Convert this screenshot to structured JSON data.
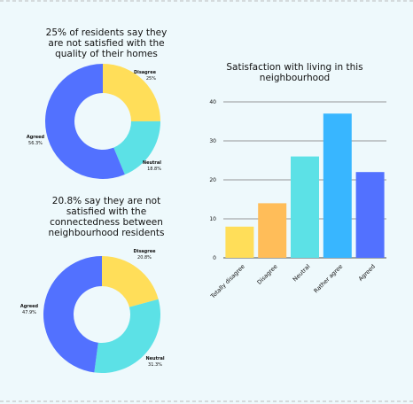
{
  "chart_data": [
    {
      "type": "donut",
      "title": "25% of residents say they are not satisfied with the quality of their homes",
      "categories": [
        "Disagree",
        "Neutral",
        "Agreed"
      ],
      "values": [
        25,
        18.8,
        56.3
      ],
      "value_labels": [
        "25%",
        "18.8%",
        "56.3%"
      ],
      "colors": [
        "#ffde59",
        "#5ce1e6",
        "#5271ff"
      ]
    },
    {
      "type": "donut",
      "title": "20.8% say they are not satisfied with the connectedness between neighbourhood residents",
      "categories": [
        "Disagree",
        "Neutral",
        "Agreed"
      ],
      "values": [
        20.8,
        31.3,
        47.9
      ],
      "value_labels": [
        "20.8%",
        "31.3%",
        "47.9%"
      ],
      "colors": [
        "#ffde59",
        "#5ce1e6",
        "#5271ff"
      ]
    },
    {
      "type": "bar",
      "title": "Satisfaction with living in this neighbourhood",
      "categories": [
        "Totally disagree",
        "Disagree",
        "Neutral",
        "Rather agree",
        "Agreed"
      ],
      "values": [
        8,
        14,
        26,
        37,
        22
      ],
      "colors": [
        "#ffde59",
        "#ffbd59",
        "#5ce1e6",
        "#38b6ff",
        "#5271ff"
      ],
      "ylim": [
        0,
        40
      ],
      "yticks": [
        0,
        10,
        20,
        30,
        40
      ],
      "grid": true
    }
  ]
}
